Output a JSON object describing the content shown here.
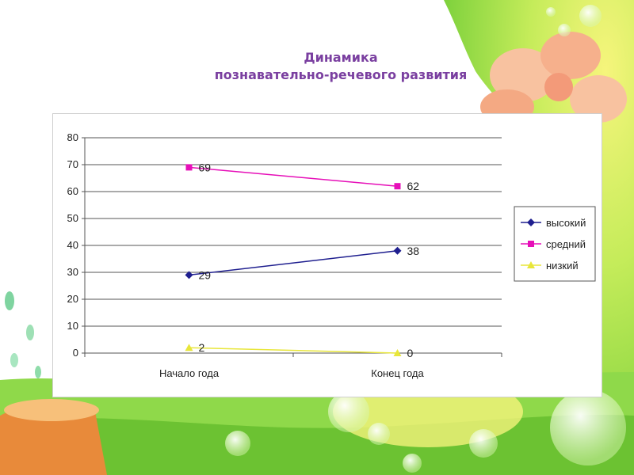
{
  "slide": {
    "title_line1": "Динамика",
    "title_line2": "познавательно-речевого развития"
  },
  "colors": {
    "title": "#7a3fa0",
    "background_green": "#8fd94a",
    "background_yellow": "#f7f27a",
    "flower": "#f6b58e"
  },
  "chart_data": {
    "type": "line",
    "categories": [
      "Начало года",
      "Конец года"
    ],
    "yticks": [
      "0",
      "10",
      "20",
      "30",
      "40",
      "50",
      "60",
      "70",
      "80"
    ],
    "ylim": [
      0,
      80
    ],
    "grid": true,
    "legend_position": "right",
    "series": [
      {
        "name": "высокий",
        "values": [
          29,
          38
        ],
        "labels": [
          "29",
          "38"
        ],
        "color": "#1f1f8f",
        "marker": "diamond"
      },
      {
        "name": "средний",
        "values": [
          69,
          62
        ],
        "labels": [
          "69",
          "62"
        ],
        "color": "#e60fb8",
        "marker": "square"
      },
      {
        "name": "низкий",
        "values": [
          2,
          0
        ],
        "labels": [
          "2",
          "0"
        ],
        "color": "#e8e63a",
        "marker": "triangle"
      }
    ]
  }
}
